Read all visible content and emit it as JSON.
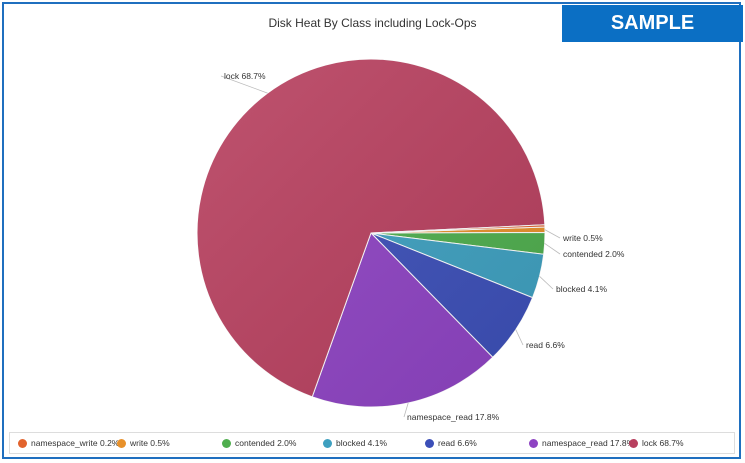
{
  "badge": "SAMPLE",
  "chart_data": {
    "type": "pie",
    "title": "Disk Heat By Class including Lock-Ops",
    "slices": [
      {
        "name": "write",
        "label": "write 0.5%",
        "value": 0.5,
        "color": "#e8912b"
      },
      {
        "name": "contended",
        "label": "contended 2.0%",
        "value": 2.0,
        "color": "#4fae4e"
      },
      {
        "name": "blocked",
        "label": "blocked 4.1%",
        "value": 4.1,
        "color": "#3ea0c0"
      },
      {
        "name": "read",
        "label": "read 6.6%",
        "value": 6.6,
        "color": "#3c4fb8"
      },
      {
        "name": "namespace_read",
        "label": "namespace_read 17.8%",
        "value": 17.8,
        "color": "#8e43c3"
      },
      {
        "name": "lock",
        "label": "lock 68.7%",
        "value": 68.7,
        "color": "#b8405f"
      },
      {
        "name": "namespace_write",
        "label": "namespace_write 0.2%",
        "value": 0.2,
        "color": "#e2632d"
      }
    ],
    "legend_position": "bottom",
    "legend": [
      {
        "label": "namespace_write 0.2%",
        "color": "#e2632d"
      },
      {
        "label": "write 0.5%",
        "color": "#e8912b"
      },
      {
        "label": "contended 2.0%",
        "color": "#4fae4e"
      },
      {
        "label": "blocked 4.1%",
        "color": "#3ea0c0"
      },
      {
        "label": "read 6.6%",
        "color": "#3c4fb8"
      },
      {
        "label": "namespace_read 17.8%",
        "color": "#8e43c3"
      },
      {
        "label": "lock 68.7%",
        "color": "#b8405f"
      }
    ]
  }
}
